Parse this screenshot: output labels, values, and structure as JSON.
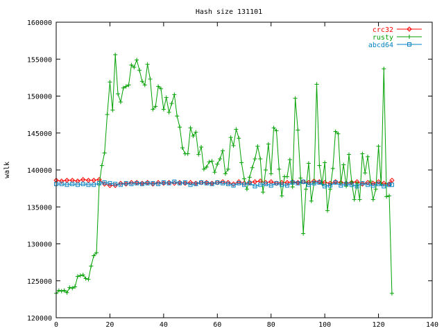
{
  "chart_data": {
    "type": "line",
    "title": "Hash size 131101",
    "xlabel": "",
    "ylabel": "walk",
    "xlim": [
      0,
      140
    ],
    "ylim": [
      120000,
      160000
    ],
    "xticks": [
      0,
      20,
      40,
      60,
      80,
      100,
      120,
      140
    ],
    "yticks": [
      120000,
      125000,
      130000,
      135000,
      140000,
      145000,
      150000,
      155000,
      160000
    ],
    "grid": false,
    "legend_position": "top-right",
    "series": [
      {
        "name": "crc32",
        "color": "#ff0000",
        "marker": "diamond",
        "x": [
          0,
          2,
          4,
          6,
          8,
          10,
          12,
          14,
          16,
          18,
          20,
          22,
          24,
          26,
          28,
          30,
          32,
          34,
          36,
          38,
          40,
          42,
          44,
          46,
          48,
          50,
          52,
          54,
          56,
          58,
          60,
          62,
          64,
          66,
          68,
          70,
          72,
          74,
          76,
          78,
          80,
          82,
          84,
          86,
          88,
          90,
          92,
          94,
          96,
          98,
          100,
          102,
          104,
          106,
          108,
          110,
          112,
          114,
          116,
          118,
          120,
          122,
          124,
          125
        ],
        "y": [
          138600,
          138500,
          138600,
          138600,
          138500,
          138700,
          138600,
          138600,
          138700,
          138100,
          137900,
          137900,
          138200,
          138100,
          138300,
          138300,
          138200,
          138300,
          138100,
          138300,
          138200,
          138300,
          138200,
          138300,
          138200,
          138300,
          138200,
          138300,
          138300,
          138200,
          138300,
          138400,
          138300,
          138100,
          138400,
          138200,
          138300,
          138400,
          138500,
          138300,
          138400,
          138200,
          138300,
          138300,
          138400,
          138300,
          138400,
          138300,
          138500,
          138400,
          138300,
          138200,
          138400,
          138300,
          138200,
          138300,
          138400,
          138100,
          138300,
          138200,
          138400,
          138200,
          138100,
          138600
        ]
      },
      {
        "name": "rusty",
        "color": "#00a000",
        "marker": "plus",
        "x": [
          0,
          1,
          2,
          3,
          4,
          5,
          6,
          7,
          8,
          9,
          10,
          11,
          12,
          13,
          14,
          15,
          16,
          17,
          18,
          19,
          20,
          21,
          22,
          23,
          24,
          25,
          26,
          27,
          28,
          29,
          30,
          31,
          32,
          33,
          34,
          35,
          36,
          37,
          38,
          39,
          40,
          41,
          42,
          43,
          44,
          45,
          46,
          47,
          48,
          49,
          50,
          51,
          52,
          53,
          54,
          55,
          56,
          57,
          58,
          59,
          60,
          61,
          62,
          63,
          64,
          65,
          66,
          67,
          68,
          69,
          70,
          71,
          72,
          73,
          74,
          75,
          76,
          77,
          78,
          79,
          80,
          81,
          82,
          83,
          84,
          85,
          86,
          87,
          88,
          89,
          90,
          91,
          92,
          93,
          94,
          95,
          96,
          97,
          98,
          99,
          100,
          101,
          102,
          103,
          104,
          105,
          106,
          107,
          108,
          109,
          110,
          111,
          112,
          113,
          114,
          115,
          116,
          117,
          118,
          119,
          120,
          121,
          122,
          123,
          124,
          125
        ],
        "y": [
          123300,
          123700,
          123600,
          123700,
          123400,
          124100,
          124000,
          124200,
          125600,
          125700,
          125800,
          125300,
          125200,
          127000,
          128400,
          128800,
          138000,
          140600,
          142300,
          147500,
          151900,
          148100,
          155600,
          150300,
          149200,
          151100,
          151300,
          151500,
          154200,
          153900,
          154900,
          153500,
          152000,
          151500,
          154300,
          152300,
          148200,
          148600,
          151300,
          151000,
          148200,
          149800,
          147800,
          149000,
          150200,
          147300,
          145800,
          143000,
          142200,
          142200,
          145700,
          144600,
          145100,
          142100,
          143100,
          140100,
          140400,
          141100,
          141200,
          139700,
          140800,
          141500,
          142600,
          139500,
          140100,
          144400,
          143300,
          145500,
          144300,
          141000,
          138800,
          137400,
          139000,
          140300,
          141500,
          143200,
          141500,
          137000,
          140000,
          143500,
          139500,
          145700,
          145300,
          140100,
          136500,
          139100,
          139100,
          141400,
          137700,
          149700,
          145400,
          138900,
          131400,
          137400,
          140900,
          135800,
          138200,
          151600,
          140600,
          138100,
          141000,
          134500,
          137400,
          140200,
          145200,
          144900,
          138300,
          140700,
          137800,
          142100,
          138400,
          136000,
          138200,
          136000,
          142200,
          139600,
          141800,
          138500,
          136000,
          137400,
          143200,
          138100,
          153700,
          136400,
          136500,
          123300
        ]
      },
      {
        "name": "abcd64",
        "color": "#0080c0",
        "marker": "square",
        "x": [
          0,
          2,
          4,
          6,
          8,
          10,
          12,
          14,
          16,
          18,
          20,
          22,
          24,
          26,
          28,
          30,
          32,
          34,
          36,
          38,
          40,
          42,
          44,
          46,
          48,
          50,
          52,
          54,
          56,
          58,
          60,
          62,
          64,
          66,
          68,
          70,
          72,
          74,
          76,
          78,
          80,
          82,
          84,
          86,
          88,
          90,
          92,
          94,
          96,
          98,
          100,
          102,
          104,
          106,
          108,
          110,
          112,
          114,
          116,
          118,
          120,
          122,
          124,
          125
        ],
        "y": [
          138100,
          138100,
          138000,
          138100,
          138000,
          138100,
          138000,
          138000,
          138200,
          138300,
          138200,
          138100,
          138000,
          138200,
          138100,
          138200,
          138100,
          138200,
          138200,
          138100,
          138300,
          138200,
          138400,
          138200,
          138300,
          138000,
          138100,
          138300,
          138200,
          138100,
          138300,
          138200,
          138100,
          137900,
          138200,
          138000,
          138200,
          137800,
          138000,
          138100,
          137900,
          138200,
          138000,
          137900,
          138300,
          138200,
          138400,
          138000,
          138200,
          138300,
          137800,
          137900,
          138300,
          137900,
          138100,
          138000,
          137800,
          138200,
          138000,
          137900,
          138100,
          137800,
          138000,
          138000
        ]
      }
    ]
  }
}
